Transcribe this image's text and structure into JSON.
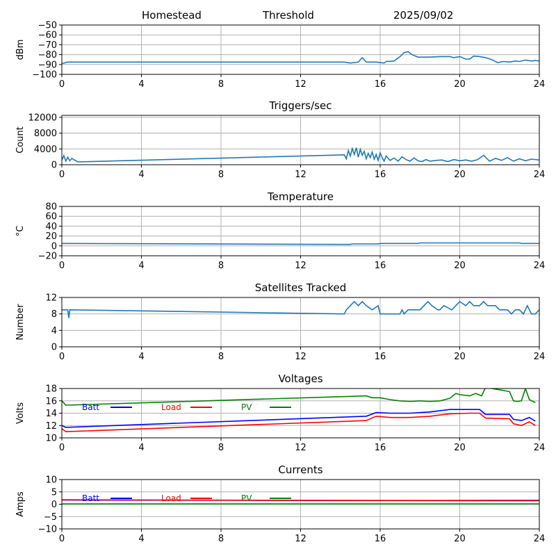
{
  "header": {
    "station": "Homestead",
    "mode": "Threshold",
    "date": "2025/09/02"
  },
  "colors": {
    "series_default": "#1f77b4",
    "batt": "#0000ff",
    "load": "#ff0000",
    "pv": "#008000",
    "grid": "#b0b0b0"
  },
  "chart_data": [
    {
      "id": "signal",
      "type": "line",
      "title": "",
      "ylabel": "dBm",
      "xlim": [
        0,
        24
      ],
      "ylim": [
        -100,
        -50
      ],
      "xticks": [
        "0",
        "4",
        "8",
        "12",
        "16",
        "20",
        "24"
      ],
      "yticks": [
        "−50",
        "−60",
        "−70",
        "−80",
        "−90",
        "−100"
      ],
      "grid": true,
      "series": [
        {
          "x": [
            0,
            0.3,
            14.2,
            14.5,
            14.9,
            15.1,
            15.3,
            15.8,
            16.2,
            16.3,
            16.7,
            17.0,
            17.2,
            17.4,
            17.6,
            17.9,
            18.5,
            19.0,
            19.5,
            19.7,
            20.0,
            20.3,
            20.5,
            20.7,
            21.0,
            21.3,
            21.6,
            21.9,
            22.2,
            22.5,
            22.8,
            23.0,
            23.3,
            23.6,
            23.8,
            24.0
          ],
          "y": [
            -89,
            -87.5,
            -87.5,
            -88.5,
            -87.5,
            -83,
            -87.5,
            -87.5,
            -88.5,
            -87,
            -86.5,
            -82,
            -78,
            -77,
            -80,
            -82.5,
            -82.5,
            -82,
            -82,
            -83,
            -82,
            -84.5,
            -84.5,
            -81.5,
            -82,
            -83,
            -85,
            -88,
            -87,
            -87.5,
            -86.5,
            -87,
            -85.5,
            -86.5,
            -86,
            -86.5
          ]
        }
      ]
    },
    {
      "id": "triggers",
      "type": "line",
      "title": "Triggers/sec",
      "ylabel": "Count",
      "xlim": [
        0,
        24
      ],
      "ylim": [
        0,
        12500
      ],
      "xticks": [
        "0",
        "4",
        "8",
        "12",
        "16",
        "20",
        "24"
      ],
      "yticks": [
        "12000",
        "8000",
        "4000",
        "0"
      ],
      "grid": true,
      "series": [
        {
          "x": [
            0,
            0.1,
            0.2,
            0.3,
            0.4,
            0.5,
            0.8,
            14.2,
            14.3,
            14.4,
            14.5,
            14.6,
            14.7,
            14.8,
            14.9,
            15.0,
            15.1,
            15.2,
            15.3,
            15.4,
            15.5,
            15.6,
            15.7,
            15.8,
            15.9,
            16.0,
            16.1,
            16.2,
            16.3,
            16.5,
            16.7,
            16.9,
            17.1,
            17.3,
            17.5,
            17.7,
            17.9,
            18.1,
            18.3,
            18.5,
            18.8,
            19.1,
            19.4,
            19.7,
            20.0,
            20.3,
            20.6,
            20.9,
            21.2,
            21.5,
            21.8,
            22.1,
            22.4,
            22.7,
            23.0,
            23.3,
            23.6,
            24.0
          ],
          "y": [
            1200,
            2300,
            900,
            1900,
            1000,
            1600,
            700,
            2500,
            1500,
            3600,
            2200,
            4100,
            2600,
            4300,
            1900,
            3900,
            2400,
            3400,
            1500,
            2900,
            1800,
            3200,
            1400,
            2600,
            1100,
            3000,
            1800,
            900,
            2200,
            1100,
            1700,
            900,
            2000,
            1300,
            900,
            1700,
            1000,
            800,
            1300,
            900,
            1100,
            1200,
            800,
            1300,
            1000,
            1200,
            900,
            1300,
            2400,
            900,
            1600,
            1100,
            1800,
            900,
            1500,
            1000,
            1400,
            1200
          ]
        }
      ]
    },
    {
      "id": "temperature",
      "type": "line",
      "title": "Temperature",
      "ylabel": "°C",
      "xlim": [
        0,
        24
      ],
      "ylim": [
        -20,
        80
      ],
      "xticks": [
        "0",
        "4",
        "8",
        "12",
        "16",
        "20",
        "24"
      ],
      "yticks": [
        "80",
        "60",
        "40",
        "20",
        "0",
        "−20"
      ],
      "grid": true,
      "series": [
        {
          "x": [
            0,
            14.5,
            14.6,
            15.9,
            16.0,
            17.9,
            18.0,
            23.0,
            23.1,
            24.0
          ],
          "y": [
            5,
            3,
            4,
            4,
            5,
            5,
            6,
            6,
            5,
            5
          ]
        }
      ]
    },
    {
      "id": "satellites",
      "type": "line",
      "title": "Satellites Tracked",
      "ylabel": "Number",
      "xlim": [
        0,
        24
      ],
      "ylim": [
        0,
        12
      ],
      "xticks": [
        "0",
        "4",
        "8",
        "12",
        "16",
        "20",
        "24"
      ],
      "yticks": [
        "12",
        "8",
        "4",
        "0"
      ],
      "grid": true,
      "series": [
        {
          "x": [
            0,
            0.3,
            0.35,
            0.4,
            14.2,
            14.3,
            14.5,
            14.7,
            14.9,
            15.1,
            15.3,
            15.6,
            15.9,
            16.0,
            16.2,
            17.0,
            17.1,
            17.2,
            17.4,
            17.6,
            18.0,
            18.2,
            18.4,
            18.6,
            18.9,
            19.0,
            19.2,
            19.6,
            19.8,
            20.0,
            20.3,
            20.5,
            20.7,
            21.0,
            21.2,
            21.4,
            21.6,
            21.8,
            22.0,
            22.2,
            22.4,
            22.6,
            22.8,
            23.0,
            23.2,
            23.4,
            23.6,
            23.8,
            24.0
          ],
          "y": [
            9,
            9,
            7,
            9,
            8,
            9,
            10,
            11,
            10,
            11,
            10,
            9,
            10,
            8,
            8,
            8,
            9,
            8,
            9,
            9,
            9,
            10,
            11,
            10,
            9,
            9,
            10,
            9,
            10,
            11,
            10,
            11,
            10,
            10,
            11,
            10,
            10,
            10,
            9,
            9,
            9,
            8,
            9,
            9,
            8,
            10,
            8,
            8,
            9
          ]
        }
      ]
    },
    {
      "id": "voltages",
      "type": "line",
      "title": "Voltages",
      "ylabel": "Volts",
      "xlim": [
        0,
        24
      ],
      "ylim": [
        10,
        18
      ],
      "xticks": [
        "0",
        "4",
        "8",
        "12",
        "16",
        "20",
        "24"
      ],
      "yticks": [
        "18",
        "16",
        "14",
        "12",
        "10"
      ],
      "grid": true,
      "series": [
        {
          "name": "Batt",
          "color": "#0000ff",
          "x": [
            0,
            0.2,
            15.3,
            15.8,
            16.5,
            17.5,
            18.5,
            19.5,
            20.5,
            21.0,
            21.3,
            22.5,
            22.7,
            23.1,
            23.5,
            23.8
          ],
          "y": [
            12.0,
            11.7,
            13.5,
            14.1,
            14.0,
            14.0,
            14.2,
            14.6,
            14.6,
            14.6,
            13.8,
            13.8,
            13.0,
            12.8,
            13.3,
            12.7
          ]
        },
        {
          "name": "Load",
          "color": "#ff0000",
          "x": [
            0,
            0.2,
            15.3,
            15.8,
            16.5,
            17.5,
            18.5,
            19.5,
            20.5,
            21.0,
            21.3,
            22.5,
            22.7,
            23.1,
            23.5,
            23.8
          ],
          "y": [
            11.5,
            11.0,
            12.8,
            13.5,
            13.3,
            13.3,
            13.5,
            13.9,
            14.0,
            14.0,
            13.2,
            13.1,
            12.3,
            12.0,
            12.6,
            12.0
          ]
        },
        {
          "name": "PV",
          "color": "#008000",
          "x": [
            0,
            0.2,
            15.3,
            15.6,
            16.0,
            16.5,
            17.0,
            17.5,
            18.0,
            18.5,
            19.0,
            19.5,
            19.8,
            20.0,
            20.5,
            20.8,
            21.1,
            21.3,
            21.6,
            22.0,
            22.5,
            22.7,
            22.9,
            23.1,
            23.3,
            23.5,
            23.8
          ],
          "y": [
            16.0,
            15.3,
            16.8,
            16.5,
            16.5,
            16.2,
            16.0,
            15.9,
            16.0,
            15.9,
            16.0,
            16.4,
            17.2,
            17.0,
            16.8,
            17.2,
            16.8,
            18.2,
            18.0,
            17.8,
            17.5,
            16.0,
            15.9,
            16.0,
            18.0,
            16.2,
            15.7
          ]
        }
      ]
    },
    {
      "id": "currents",
      "type": "line",
      "title": "Currents",
      "ylabel": "Amps",
      "xlim": [
        0,
        24
      ],
      "ylim": [
        -10,
        10
      ],
      "xticks": [
        "0",
        "4",
        "8",
        "12",
        "16",
        "20",
        "24"
      ],
      "yticks": [
        "10",
        "5",
        "0",
        "−5",
        "−10"
      ],
      "grid": true,
      "series": [
        {
          "name": "Batt",
          "color": "#0000ff",
          "x": [
            0,
            24
          ],
          "y": [
            1.7,
            1.4
          ]
        },
        {
          "name": "Load",
          "color": "#ff0000",
          "x": [
            0,
            15.5,
            16.0,
            24
          ],
          "y": [
            1.8,
            1.5,
            1.5,
            1.6
          ]
        },
        {
          "name": "PV",
          "color": "#008000",
          "x": [
            0,
            24
          ],
          "y": [
            0.1,
            0.1
          ]
        }
      ]
    }
  ]
}
